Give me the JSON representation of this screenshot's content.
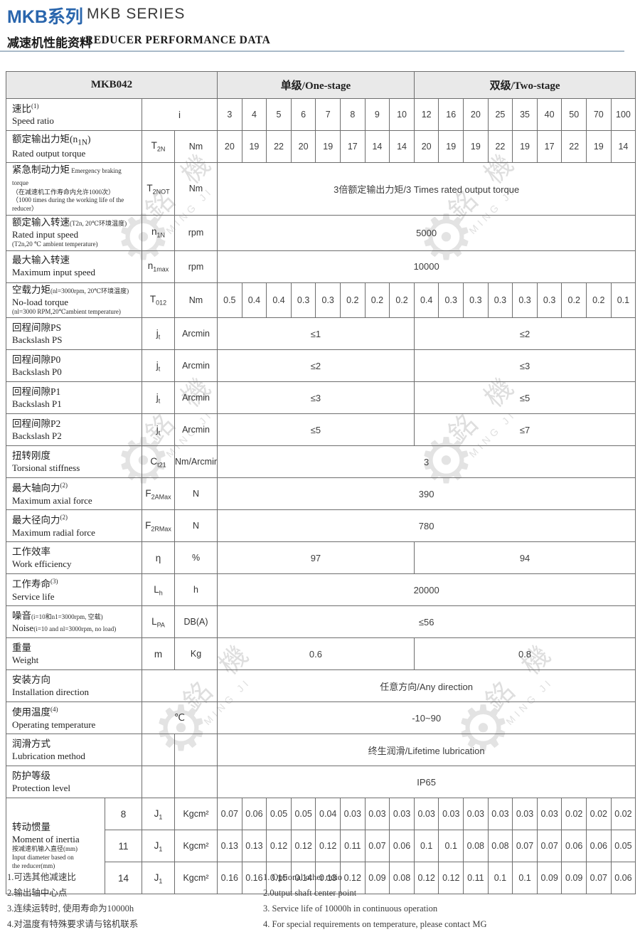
{
  "page": {
    "title_zh": "MKB系列",
    "title_en": "MKB SERIES",
    "subtitle_zh": "减速机性能资料",
    "subtitle_en": "REDUCER PERFORMANCE DATA"
  },
  "watermark": {
    "zh": "銘 機",
    "en": "MING JI",
    "gear": "⚙"
  },
  "table": {
    "model": "MKB042",
    "group_one": "单级/One-stage",
    "group_two": "双级/Two-stage",
    "rows": [
      {
        "id": "speed-ratio",
        "label": {
          "zh": "速比",
          "zh_sup": "(1)",
          "en": "Speed ratio"
        },
        "sym": {
          "merged": true,
          "base": "i"
        },
        "data": {
          "type": "cells",
          "one": [
            "3",
            "4",
            "5",
            "6",
            "7",
            "8",
            "9",
            "10"
          ],
          "two": [
            "12",
            "16",
            "20",
            "25",
            "35",
            "40",
            "50",
            "70",
            "100"
          ]
        }
      },
      {
        "id": "rated-output-torque",
        "label": {
          "zh": "额定输出力矩(n",
          "zh_sub": "1N",
          "zh_tail": ")",
          "en": "Rated output torque"
        },
        "sym": {
          "base": "T",
          "sub": "2N"
        },
        "unit": "Nm",
        "data": {
          "type": "cells",
          "one": [
            "20",
            "19",
            "22",
            "20",
            "19",
            "17",
            "14",
            "14"
          ],
          "two": [
            "20",
            "19",
            "19",
            "22",
            "19",
            "17",
            "22",
            "19",
            "14"
          ]
        }
      },
      {
        "id": "emergency-braking-torque",
        "label": {
          "zh": "紧急制动力矩",
          "zh_small": " Emergency braking torque",
          "small_lines": [
            "（在减速机工作寿命内允许1000次）",
            "（1000 times during the working life of the reducer）"
          ]
        },
        "sym": {
          "base": "T",
          "sub": "2NOT"
        },
        "unit": "Nm",
        "data": {
          "type": "span",
          "text": "3倍额定输出力矩/3 Times rated output torque"
        }
      },
      {
        "id": "rated-input-speed",
        "label": {
          "zh": "额定输入转速",
          "zh_small": "(T2n, 20℃环境温度)",
          "en": "Rated input speed",
          "small_lines": [
            "(T2n,20 ℃ ambient temperature)"
          ]
        },
        "sym": {
          "base": "n",
          "sub": "1N"
        },
        "unit": "rpm",
        "data": {
          "type": "span",
          "text": "5000"
        }
      },
      {
        "id": "max-input-speed",
        "label": {
          "zh": "最大输入转速",
          "en": "Maximum input speed"
        },
        "sym": {
          "base": "n",
          "sub": "1max"
        },
        "unit": "rpm",
        "data": {
          "type": "span",
          "text": "10000"
        }
      },
      {
        "id": "no-load-torque",
        "label": {
          "zh": "空载力矩",
          "zh_small": "(nl=3000rpm, 20℃环境温度)",
          "en": "No-load torque",
          "small_lines": [
            "(nl=3000 RPM,20℃ambient temperature)"
          ]
        },
        "sym": {
          "base": "T",
          "sub": "012"
        },
        "unit": "Nm",
        "data": {
          "type": "cells",
          "one": [
            "0.5",
            "0.4",
            "0.4",
            "0.3",
            "0.3",
            "0.2",
            "0.2",
            "0.2"
          ],
          "two": [
            "0.4",
            "0.3",
            "0.3",
            "0.3",
            "0.3",
            "0.3",
            "0.2",
            "0.2",
            "0.1"
          ]
        }
      },
      {
        "id": "backlash-ps",
        "label": {
          "zh": "回程间隙PS",
          "en": "Backslash PS"
        },
        "sym": {
          "base": "j",
          "sub": "t"
        },
        "unit": "Arcmin",
        "data": {
          "type": "split",
          "one": "≤1",
          "two": "≤2"
        }
      },
      {
        "id": "backlash-p0",
        "label": {
          "zh": "回程间隙P0",
          "en": "Backslash P0"
        },
        "sym": {
          "base": "j",
          "sub": "t"
        },
        "unit": "Arcmin",
        "data": {
          "type": "split",
          "one": "≤2",
          "two": "≤3"
        }
      },
      {
        "id": "backlash-p1",
        "label": {
          "zh": "回程间隙P1",
          "en": "Backslash P1"
        },
        "sym": {
          "base": "j",
          "sub": "t"
        },
        "unit": "Arcmin",
        "data": {
          "type": "split",
          "one": "≤3",
          "two": "≤5"
        }
      },
      {
        "id": "backlash-p2",
        "label": {
          "zh": "回程间隙P2",
          "en": "Backslash P2"
        },
        "sym": {
          "base": "j",
          "sub": "t"
        },
        "unit": "Arcmin",
        "data": {
          "type": "split",
          "one": "≤5",
          "two": "≤7"
        }
      },
      {
        "id": "torsional-stiffness",
        "label": {
          "zh": "扭转刚度",
          "en": "Torsional stiffness"
        },
        "sym": {
          "base": "C",
          "sub": "t21"
        },
        "unit": "Nm/Arcmin",
        "data": {
          "type": "span",
          "text": "3"
        }
      },
      {
        "id": "max-axial-force",
        "label": {
          "zh": "最大轴向力",
          "zh_sup": "(2)",
          "en": "Maximum axial force"
        },
        "sym": {
          "base": "F",
          "sub": "2AMax"
        },
        "unit": "N",
        "data": {
          "type": "span",
          "text": "390"
        }
      },
      {
        "id": "max-radial-force",
        "label": {
          "zh": "最大径向力",
          "zh_sup": "(2)",
          "en": "Maximum radial force"
        },
        "sym": {
          "base": "F",
          "sub": "2RMax"
        },
        "unit": "N",
        "data": {
          "type": "span",
          "text": "780"
        }
      },
      {
        "id": "work-efficiency",
        "label": {
          "zh": "工作效率",
          "en": "Work efficiency"
        },
        "sym": {
          "base": "η"
        },
        "unit": "%",
        "data": {
          "type": "split",
          "one": "97",
          "two": "94"
        }
      },
      {
        "id": "service-life",
        "label": {
          "zh": "工作寿命",
          "zh_sup": "(3)",
          "en": "Service life"
        },
        "sym": {
          "base": "L",
          "sub": "h"
        },
        "unit": "h",
        "data": {
          "type": "span",
          "text": "20000"
        }
      },
      {
        "id": "noise",
        "label": {
          "zh": "噪音",
          "zh_small": "(i=10和n1=3000rpm, 空载)",
          "en": "Noise",
          "en_small": "(i=10 and nl=3000rpm, no load)"
        },
        "sym": {
          "base": "L",
          "sub": "PA"
        },
        "unit": "DB(A)",
        "data": {
          "type": "span",
          "text": "≤56"
        }
      },
      {
        "id": "weight",
        "label": {
          "zh": "重量",
          "en": "Weight"
        },
        "sym": {
          "base": "m"
        },
        "unit": "Kg",
        "data": {
          "type": "split",
          "one": "0.6",
          "two": "0.8"
        }
      },
      {
        "id": "installation-direction",
        "label": {
          "zh": "安装方向",
          "en": "Installation direction"
        },
        "sym": {
          "merged": true,
          "base": ""
        },
        "data": {
          "type": "span",
          "text": "任意方向/Any direction"
        }
      },
      {
        "id": "operating-temperature",
        "label": {
          "zh": "使用温度",
          "zh_sup": "(4)",
          "en": "Operating temperature"
        },
        "sym": {
          "merged": true,
          "base": "℃"
        },
        "data": {
          "type": "span",
          "text": "-10~90"
        }
      },
      {
        "id": "lubrication-method",
        "label": {
          "zh": "润滑方式",
          "en": "Lubrication method"
        },
        "sym": {
          "base": ""
        },
        "unit": "",
        "data": {
          "type": "span",
          "text": "终生润滑/Lifetime lubrication"
        }
      },
      {
        "id": "protection-level",
        "label": {
          "zh": "防护等级",
          "en": "Protection level"
        },
        "sym": {
          "base": ""
        },
        "unit": "",
        "data": {
          "type": "span",
          "text": "IP65"
        }
      },
      {
        "id": "inertia-8",
        "dia": "8",
        "label": {
          "zh": "转动惯量",
          "en": "Moment of inertia",
          "small_lines": [
            "按减速机输入直径(mm)",
            "Input diameter based on",
            "the reducer(mm)"
          ]
        },
        "sym": {
          "base": "J",
          "sub": "1"
        },
        "unit": "Kgcm²",
        "data": {
          "type": "cells",
          "one": [
            "0.07",
            "0.06",
            "0.05",
            "0.05",
            "0.04",
            "0.03",
            "0.03",
            "0.03"
          ],
          "two": [
            "0.03",
            "0.03",
            "0.03",
            "0.03",
            "0.03",
            "0.03",
            "0.02",
            "0.02",
            "0.02"
          ]
        }
      },
      {
        "id": "inertia-11",
        "dia": "11",
        "sym": {
          "base": "J",
          "sub": "1"
        },
        "unit": "Kgcm²",
        "data": {
          "type": "cells",
          "one": [
            "0.13",
            "0.13",
            "0.12",
            "0.12",
            "0.12",
            "0.11",
            "0.07",
            "0.06"
          ],
          "two": [
            "0.1",
            "0.1",
            "0.08",
            "0.08",
            "0.07",
            "0.07",
            "0.06",
            "0.06",
            "0.05"
          ]
        }
      },
      {
        "id": "inertia-14",
        "dia": "14",
        "sym": {
          "base": "J",
          "sub": "1"
        },
        "unit": "Kgcm²",
        "data": {
          "type": "cells",
          "one": [
            "0.16",
            "0.16",
            "0.15",
            "0.14",
            "0.13",
            "0.12",
            "0.09",
            "0.08"
          ],
          "two": [
            "0.12",
            "0.12",
            "0.11",
            "0.1",
            "0.1",
            "0.09",
            "0.09",
            "0.07",
            "0.06"
          ]
        }
      }
    ]
  },
  "notes_zh": [
    "1.可选其他减速比",
    "2.输出轴中心点",
    "3.连续运转时, 使用寿命为10000h",
    "4.对温度有特殊要求请与铭机联系"
  ],
  "notes_en": [
    "1. Optional other ratio",
    "2.0utput shaft center point",
    "3. Service life of 10000h in continuous operation",
    "4. For special requirements on temperature, please contact MG"
  ]
}
